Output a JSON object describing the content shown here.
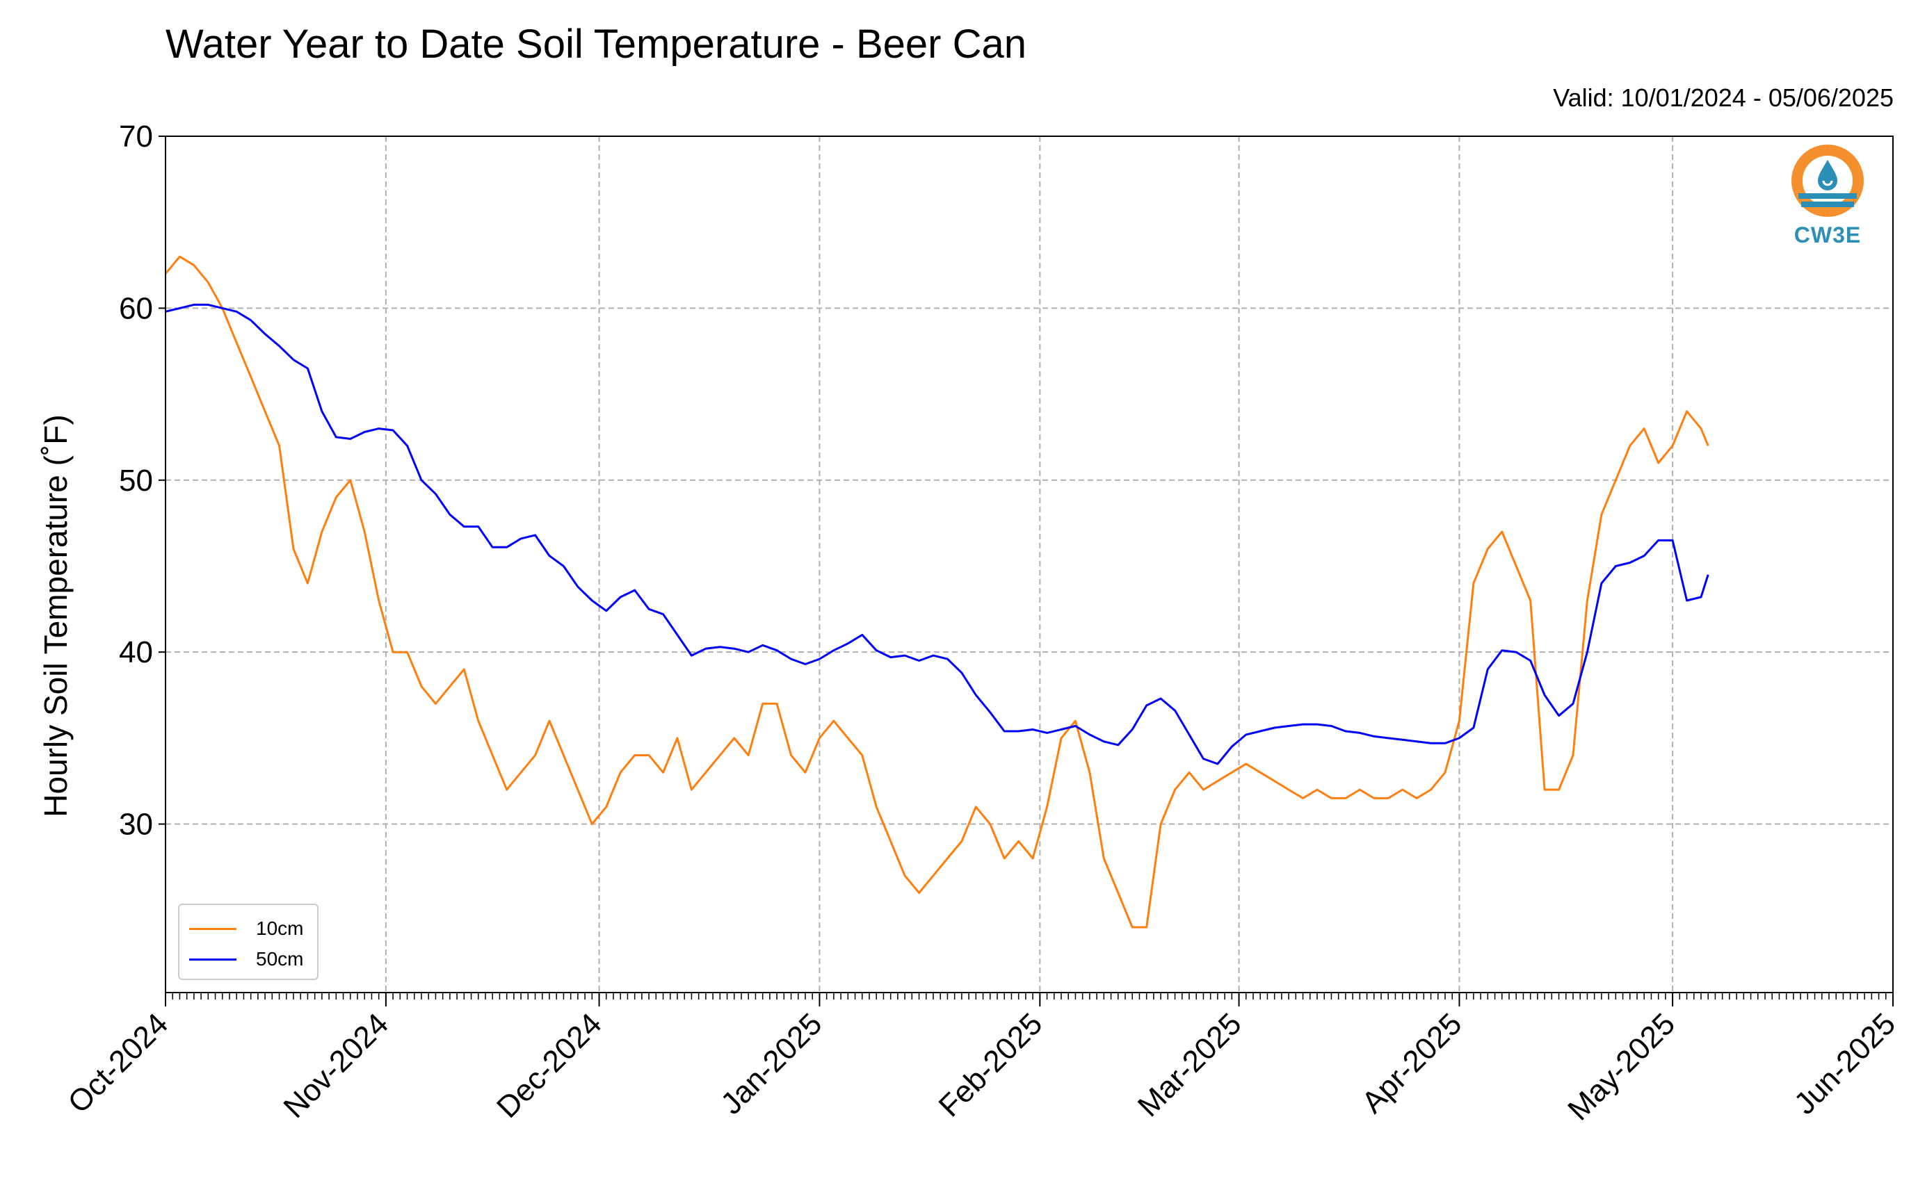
{
  "chart_data": {
    "type": "line",
    "title": "Water Year to Date Soil Temperature - Beer Can",
    "subtitle": "Valid: 10/01/2024 - 05/06/2025",
    "ylabel": "Hourly Soil Temperature (˚F)",
    "xlabel": "",
    "ylim": [
      20.2,
      70
    ],
    "xlim": [
      "2024-10-01",
      "2025-06-01"
    ],
    "yticks": [
      30,
      40,
      50,
      60,
      70
    ],
    "ytick_labels": [
      "30",
      "40",
      "50",
      "60",
      "70"
    ],
    "xticks": [
      "2024-10-01",
      "2024-11-01",
      "2024-12-01",
      "2025-01-01",
      "2025-02-01",
      "2025-03-01",
      "2025-04-01",
      "2025-05-01",
      "2025-06-01"
    ],
    "xtick_labels": [
      "Oct-2024",
      "Nov-2024",
      "Dec-2024",
      "Jan-2025",
      "Feb-2025",
      "Mar-2025",
      "Apr-2025",
      "May-2025",
      "Jun-2025"
    ],
    "grid": true,
    "legend_position": "lower-left",
    "series": [
      {
        "name": "10cm",
        "color": "#ff7f0e",
        "x": [
          "2024-10-01",
          "2024-10-03",
          "2024-10-05",
          "2024-10-07",
          "2024-10-09",
          "2024-10-11",
          "2024-10-13",
          "2024-10-15",
          "2024-10-17",
          "2024-10-19",
          "2024-10-21",
          "2024-10-23",
          "2024-10-25",
          "2024-10-27",
          "2024-10-29",
          "2024-10-31",
          "2024-11-02",
          "2024-11-04",
          "2024-11-06",
          "2024-11-08",
          "2024-11-10",
          "2024-11-12",
          "2024-11-14",
          "2024-11-16",
          "2024-11-18",
          "2024-11-20",
          "2024-11-22",
          "2024-11-24",
          "2024-11-26",
          "2024-11-28",
          "2024-11-30",
          "2024-12-02",
          "2024-12-04",
          "2024-12-06",
          "2024-12-08",
          "2024-12-10",
          "2024-12-12",
          "2024-12-14",
          "2024-12-16",
          "2024-12-18",
          "2024-12-20",
          "2024-12-22",
          "2024-12-24",
          "2024-12-26",
          "2024-12-28",
          "2024-12-30",
          "2025-01-01",
          "2025-01-03",
          "2025-01-05",
          "2025-01-07",
          "2025-01-09",
          "2025-01-11",
          "2025-01-13",
          "2025-01-15",
          "2025-01-17",
          "2025-01-19",
          "2025-01-21",
          "2025-01-23",
          "2025-01-25",
          "2025-01-27",
          "2025-01-29",
          "2025-01-31",
          "2025-02-02",
          "2025-02-04",
          "2025-02-06",
          "2025-02-08",
          "2025-02-10",
          "2025-02-12",
          "2025-02-14",
          "2025-02-16",
          "2025-02-18",
          "2025-02-20",
          "2025-02-22",
          "2025-02-24",
          "2025-02-26",
          "2025-02-28",
          "2025-03-02",
          "2025-03-04",
          "2025-03-06",
          "2025-03-08",
          "2025-03-10",
          "2025-03-12",
          "2025-03-14",
          "2025-03-16",
          "2025-03-18",
          "2025-03-20",
          "2025-03-22",
          "2025-03-24",
          "2025-03-26",
          "2025-03-28",
          "2025-03-30",
          "2025-04-01",
          "2025-04-03",
          "2025-04-05",
          "2025-04-07",
          "2025-04-09",
          "2025-04-11",
          "2025-04-13",
          "2025-04-15",
          "2025-04-17",
          "2025-04-19",
          "2025-04-21",
          "2025-04-23",
          "2025-04-25",
          "2025-04-27",
          "2025-04-29",
          "2025-05-01",
          "2025-05-03",
          "2025-05-05",
          "2025-05-06"
        ],
        "values": [
          62.0,
          63.0,
          62.5,
          61.5,
          60.0,
          58.0,
          56.0,
          54.0,
          52.0,
          46.0,
          44.0,
          47.0,
          49.0,
          50.0,
          47.0,
          43.0,
          40.0,
          40.0,
          38.0,
          37.0,
          38.0,
          39.0,
          36.0,
          34.0,
          32.0,
          33.0,
          34.0,
          36.0,
          34.0,
          32.0,
          30.0,
          31.0,
          33.0,
          34.0,
          34.0,
          33.0,
          35.0,
          32.0,
          33.0,
          34.0,
          35.0,
          34.0,
          37.0,
          37.0,
          34.0,
          33.0,
          35.0,
          36.0,
          35.0,
          34.0,
          31.0,
          29.0,
          27.0,
          26.0,
          27.0,
          28.0,
          29.0,
          31.0,
          30.0,
          28.0,
          29.0,
          28.0,
          31.0,
          35.0,
          36.0,
          33.0,
          28.0,
          26.0,
          24.0,
          24.0,
          30.0,
          32.0,
          33.0,
          32.0,
          32.5,
          33.0,
          33.5,
          33.0,
          32.5,
          32.0,
          31.5,
          32.0,
          31.5,
          31.5,
          32.0,
          31.5,
          31.5,
          32.0,
          31.5,
          32.0,
          33.0,
          36.0,
          44.0,
          46.0,
          47.0,
          45.0,
          43.0,
          32.0,
          32.0,
          34.0,
          43.0,
          48.0,
          50.0,
          52.0,
          53.0,
          51.0,
          52.0,
          54.0,
          53.0,
          52.0
        ]
      },
      {
        "name": "50cm",
        "color": "#0000ff",
        "x": [
          "2024-10-01",
          "2024-10-03",
          "2024-10-05",
          "2024-10-07",
          "2024-10-09",
          "2024-10-11",
          "2024-10-13",
          "2024-10-15",
          "2024-10-17",
          "2024-10-19",
          "2024-10-21",
          "2024-10-23",
          "2024-10-25",
          "2024-10-27",
          "2024-10-29",
          "2024-10-31",
          "2024-11-02",
          "2024-11-04",
          "2024-11-06",
          "2024-11-08",
          "2024-11-10",
          "2024-11-12",
          "2024-11-14",
          "2024-11-16",
          "2024-11-18",
          "2024-11-20",
          "2024-11-22",
          "2024-11-24",
          "2024-11-26",
          "2024-11-28",
          "2024-11-30",
          "2024-12-02",
          "2024-12-04",
          "2024-12-06",
          "2024-12-08",
          "2024-12-10",
          "2024-12-12",
          "2024-12-14",
          "2024-12-16",
          "2024-12-18",
          "2024-12-20",
          "2024-12-22",
          "2024-12-24",
          "2024-12-26",
          "2024-12-28",
          "2024-12-30",
          "2025-01-01",
          "2025-01-03",
          "2025-01-05",
          "2025-01-07",
          "2025-01-09",
          "2025-01-11",
          "2025-01-13",
          "2025-01-15",
          "2025-01-17",
          "2025-01-19",
          "2025-01-21",
          "2025-01-23",
          "2025-01-25",
          "2025-01-27",
          "2025-01-29",
          "2025-01-31",
          "2025-02-02",
          "2025-02-04",
          "2025-02-06",
          "2025-02-08",
          "2025-02-10",
          "2025-02-12",
          "2025-02-14",
          "2025-02-16",
          "2025-02-18",
          "2025-02-20",
          "2025-02-22",
          "2025-02-24",
          "2025-02-26",
          "2025-02-28",
          "2025-03-02",
          "2025-03-04",
          "2025-03-06",
          "2025-03-08",
          "2025-03-10",
          "2025-03-12",
          "2025-03-14",
          "2025-03-16",
          "2025-03-18",
          "2025-03-20",
          "2025-03-22",
          "2025-03-24",
          "2025-03-26",
          "2025-03-28",
          "2025-03-30",
          "2025-04-01",
          "2025-04-03",
          "2025-04-05",
          "2025-04-07",
          "2025-04-09",
          "2025-04-11",
          "2025-04-13",
          "2025-04-15",
          "2025-04-17",
          "2025-04-19",
          "2025-04-21",
          "2025-04-23",
          "2025-04-25",
          "2025-04-27",
          "2025-04-29",
          "2025-05-01",
          "2025-05-03",
          "2025-05-05",
          "2025-05-06"
        ],
        "values": [
          59.8,
          60.0,
          60.2,
          60.2,
          60.0,
          59.8,
          59.3,
          58.5,
          57.8,
          57.0,
          56.5,
          54.0,
          52.5,
          52.4,
          52.8,
          53.0,
          52.9,
          52.0,
          50.0,
          49.2,
          48.0,
          47.3,
          47.3,
          46.1,
          46.1,
          46.6,
          46.8,
          45.6,
          45.0,
          43.8,
          43.0,
          42.4,
          43.2,
          43.6,
          42.5,
          42.2,
          41.0,
          39.8,
          40.2,
          40.3,
          40.2,
          40.0,
          40.4,
          40.1,
          39.6,
          39.3,
          39.6,
          40.1,
          40.5,
          41.0,
          40.1,
          39.7,
          39.8,
          39.5,
          39.8,
          39.6,
          38.8,
          37.5,
          36.5,
          35.4,
          35.4,
          35.5,
          35.3,
          35.5,
          35.7,
          35.2,
          34.8,
          34.6,
          35.5,
          36.9,
          37.3,
          36.6,
          35.2,
          33.8,
          33.5,
          34.5,
          35.2,
          35.4,
          35.6,
          35.7,
          35.8,
          35.8,
          35.7,
          35.4,
          35.3,
          35.1,
          35.0,
          34.9,
          34.8,
          34.7,
          34.7,
          35.0,
          35.6,
          39.0,
          40.1,
          40.0,
          39.5,
          37.5,
          36.3,
          37.0,
          40.0,
          44.0,
          45.0,
          45.2,
          45.6,
          46.5,
          46.5,
          43.0,
          43.2,
          44.5
        ]
      }
    ]
  },
  "logo": {
    "text": "CW3E",
    "ring_color": "#f5902e",
    "text_color": "#2b8fb8"
  }
}
